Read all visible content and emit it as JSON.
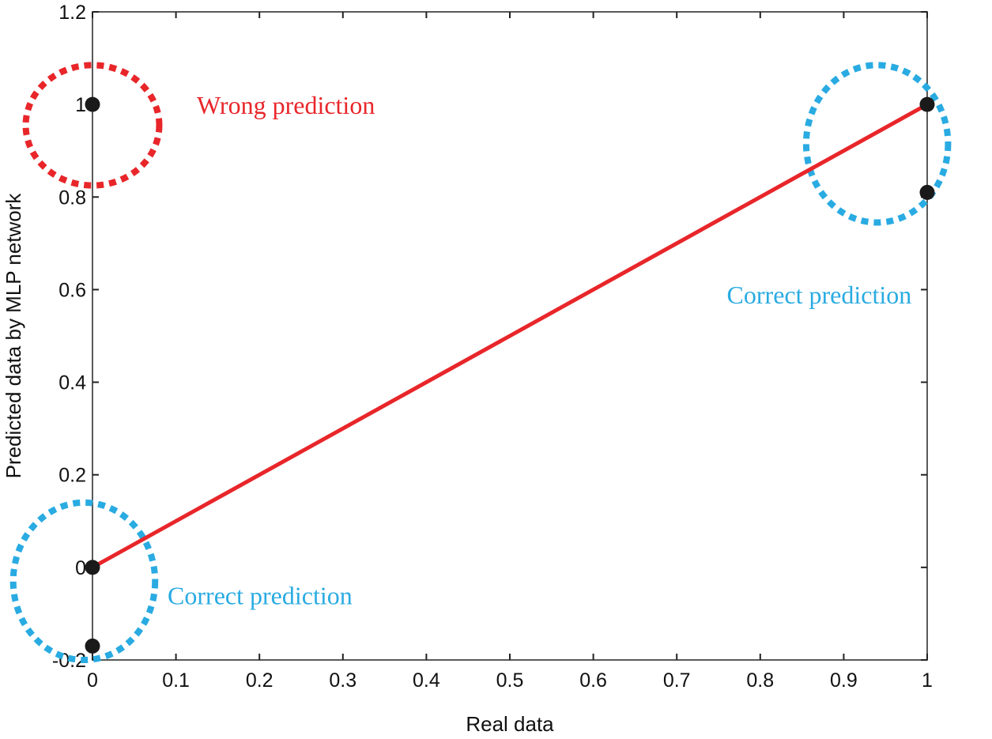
{
  "chart_data": {
    "type": "scatter",
    "xlabel": "Real data",
    "ylabel": "Predicted data by MLP network",
    "xlim": [
      0,
      1
    ],
    "ylim": [
      -0.2,
      1.2
    ],
    "x_ticks": [
      0,
      0.1,
      0.2,
      0.3,
      0.4,
      0.5,
      0.6,
      0.7,
      0.8,
      0.9,
      1
    ],
    "x_tick_labels": [
      "0",
      "0.1",
      "0.2",
      "0.3",
      "0.4",
      "0.5",
      "0.6",
      "0.7",
      "0.8",
      "0.9",
      "1"
    ],
    "y_ticks": [
      -0.2,
      0,
      0.2,
      0.4,
      0.6,
      0.8,
      1,
      1.2
    ],
    "y_tick_labels": [
      "-0.2",
      "0",
      "0.2",
      "0.4",
      "0.6",
      "0.8",
      "1",
      "1.2"
    ],
    "grid": false,
    "points": [
      {
        "x": 0,
        "y": 1
      },
      {
        "x": 0,
        "y": 0
      },
      {
        "x": 0,
        "y": -0.17
      },
      {
        "x": 1,
        "y": 1
      },
      {
        "x": 1,
        "y": 0.81
      }
    ],
    "fit_line": {
      "x": [
        0,
        1
      ],
      "y": [
        0,
        1
      ],
      "color": "#e8262a"
    },
    "annotations": [
      {
        "text": "Wrong prediction",
        "color": "#e8262a",
        "x": 0.125,
        "y": 0.98
      },
      {
        "text": "Correct prediction",
        "color": "#29abe2",
        "x": 0.76,
        "y": 0.57
      },
      {
        "text": "Correct prediction",
        "color": "#29abe2",
        "x": 0.09,
        "y": -0.08
      }
    ],
    "ellipses": [
      {
        "cx": 0.0,
        "cy": 0.955,
        "rx": 0.08,
        "ry": 0.13,
        "color": "#e8262a"
      },
      {
        "cx": 0.94,
        "cy": 0.915,
        "rx": 0.085,
        "ry": 0.17,
        "color": "#29abe2"
      },
      {
        "cx": -0.01,
        "cy": -0.03,
        "rx": 0.085,
        "ry": 0.17,
        "color": "#29abe2"
      }
    ],
    "marker_color": "#1a1a1a"
  }
}
